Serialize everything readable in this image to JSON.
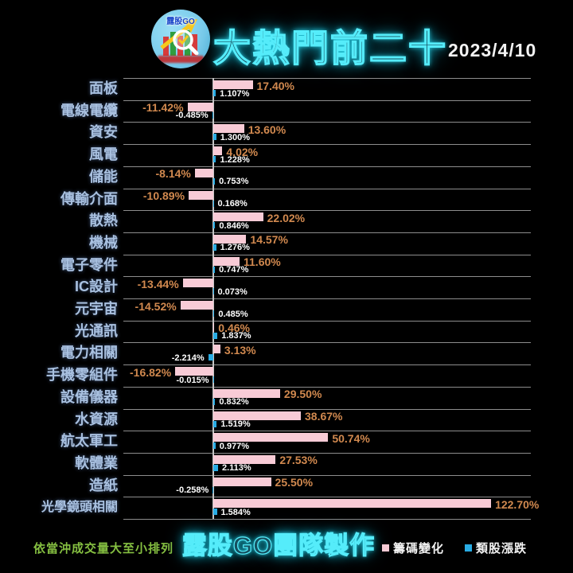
{
  "header": {
    "title": "大熱門前二十",
    "date": "2023/4/10",
    "logo_text": "露股GO"
  },
  "chart_data": {
    "type": "bar",
    "orientation": "horizontal",
    "title": "大熱門前二十",
    "sort_note": "依當沖成交量大至小排列",
    "x_unit": "%",
    "xlim": [
      -40,
      140
    ],
    "grid": "horizontal-row-separators",
    "legend_position": "bottom-right",
    "categories": [
      "面板",
      "電線電纜",
      "資安",
      "風電",
      "儲能",
      "傳輸介面",
      "散熱",
      "機械",
      "電子零件",
      "IC設計",
      "元宇宙",
      "光通訊",
      "電力相關",
      "手機零組件",
      "設備儀器",
      "水資源",
      "航太軍工",
      "軟體業",
      "造紙",
      "光學鏡頭相關"
    ],
    "series": [
      {
        "name": "籌碼變化",
        "color": "#f8cbd6",
        "label_color": "#d1894f",
        "label_decimals": 2,
        "values": [
          17.4,
          -11.42,
          13.6,
          4.02,
          -8.14,
          -10.89,
          22.02,
          14.57,
          11.6,
          -13.44,
          -14.52,
          0.46,
          3.13,
          -16.82,
          29.5,
          38.67,
          50.74,
          27.53,
          25.5,
          122.7
        ]
      },
      {
        "name": "類股漲跌",
        "color": "#29ace4",
        "label_color": "#ffffff",
        "label_decimals": 3,
        "values": [
          1.107,
          -0.485,
          1.3,
          1.228,
          0.753,
          0.168,
          0.846,
          1.276,
          0.747,
          0.073,
          0.485,
          1.837,
          -2.214,
          -0.015,
          0.832,
          1.519,
          0.977,
          2.113,
          -0.258,
          1.584
        ]
      }
    ]
  },
  "footer": {
    "note": "依當沖成交量大至小排列",
    "credit": "露股GO團隊製作",
    "legend": [
      {
        "label": "籌碼變化",
        "color": "#f8cbd6"
      },
      {
        "label": "類股漲跌",
        "color": "#29ace4"
      }
    ]
  }
}
